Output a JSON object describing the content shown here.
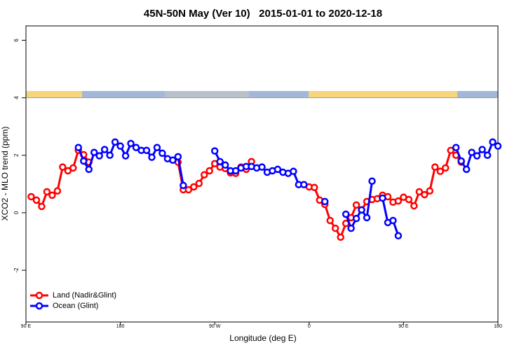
{
  "chart_data": {
    "type": "line",
    "title": "45N-50N May (Ver 10)   2015-01-01 to 2020-12-18",
    "x_label": "Longitude (deg E)",
    "y_label": "XCO2 - MLO trend (ppm)",
    "x": [
      95,
      100,
      105,
      110,
      115,
      120,
      125,
      130,
      135,
      140,
      145,
      150,
      155,
      160,
      165,
      170,
      175,
      180,
      185,
      190,
      195,
      200,
      205,
      210,
      215,
      220,
      225,
      230,
      235,
      240,
      245,
      250,
      255,
      260,
      265,
      270,
      275,
      280,
      285,
      290,
      295,
      300,
      305,
      310,
      315,
      320,
      325,
      330,
      335,
      340,
      345,
      350,
      355,
      360,
      365,
      370,
      375,
      380,
      385,
      390,
      395,
      400,
      405,
      410,
      415,
      420,
      425,
      430,
      435,
      440,
      445,
      450,
      455,
      460,
      465,
      470,
      475,
      480,
      485,
      490,
      495,
      500,
      505,
      510,
      515,
      520,
      525,
      530,
      535,
      540
    ],
    "series": [
      {
        "name": "Land (Nadir&Glint)",
        "color": "#ff0000",
        "values": [
          0.56,
          0.44,
          0.22,
          0.73,
          0.61,
          0.76,
          1.59,
          1.46,
          1.56,
          2.17,
          2.02,
          1.76,
          null,
          null,
          null,
          null,
          null,
          null,
          null,
          null,
          null,
          null,
          null,
          null,
          null,
          null,
          null,
          null,
          1.76,
          0.8,
          0.8,
          0.9,
          1.02,
          1.32,
          1.46,
          1.71,
          1.59,
          1.54,
          1.39,
          1.37,
          1.59,
          1.51,
          1.78,
          null,
          null,
          null,
          null,
          null,
          null,
          null,
          null,
          null,
          null,
          0.9,
          0.88,
          0.44,
          0.29,
          -0.27,
          -0.54,
          -0.85,
          -0.37,
          -0.17,
          0.27,
          0.1,
          0.39,
          0.46,
          0.49,
          0.61,
          0.56,
          0.37,
          0.41,
          0.54,
          0.46,
          0.24,
          0.73,
          0.63,
          0.76,
          1.59,
          1.44,
          1.56,
          2.17,
          2.0,
          1.76,
          null,
          null,
          null,
          null,
          null,
          null,
          null
        ]
      },
      {
        "name": "Ocean (Glint)",
        "color": "#0000ff",
        "values": [
          null,
          null,
          null,
          null,
          null,
          null,
          null,
          null,
          null,
          2.27,
          1.8,
          1.51,
          2.1,
          1.98,
          2.2,
          2.0,
          2.46,
          2.32,
          1.98,
          2.41,
          2.27,
          2.17,
          2.17,
          1.93,
          2.27,
          2.07,
          1.88,
          1.83,
          1.95,
          0.95,
          null,
          null,
          null,
          null,
          null,
          2.15,
          1.78,
          1.66,
          1.46,
          1.46,
          1.56,
          1.61,
          1.61,
          1.56,
          1.59,
          1.41,
          1.46,
          1.51,
          1.41,
          1.37,
          1.44,
          0.98,
          0.98,
          null,
          null,
          null,
          0.39,
          null,
          null,
          null,
          -0.05,
          -0.54,
          -0.2,
          0.1,
          -0.17,
          1.1,
          null,
          0.51,
          -0.34,
          -0.27,
          -0.8,
          null,
          null,
          null,
          null,
          null,
          null,
          null,
          null,
          null,
          null,
          2.27,
          1.8,
          1.51,
          2.1,
          1.98,
          2.2,
          2.0,
          2.46,
          2.32
        ]
      }
    ],
    "xlim": [
      90,
      540
    ],
    "xticks": [
      {
        "value": 90,
        "label": "90 E"
      },
      180,
      {
        "value": 270,
        "label": "90 W"
      },
      {
        "value": 360,
        "label": "0"
      },
      {
        "value": 450,
        "label": "90 E"
      },
      {
        "value": 540,
        "label": "180"
      }
    ],
    "ylim": [
      -3.8,
      6.5
    ],
    "yticks": [
      -2,
      0,
      2,
      4,
      6
    ],
    "grid": false,
    "legend": "bottomleft"
  }
}
